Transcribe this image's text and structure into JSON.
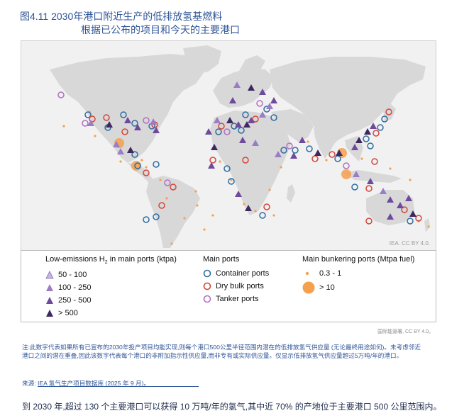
{
  "title": {
    "line1": "图4.11 2030年港口附近生产的低排放氢基燃料",
    "line2": "根据已公布的项目和今天的主要港口"
  },
  "map": {
    "credit": "IEA. CC BY 4.0.",
    "colors": {
      "land": "#d8d8d8",
      "ocean": "#f1f1f1",
      "container": "#2e6da4",
      "dry_bulk": "#d2463a",
      "tanker": "#b36fc4",
      "bunkering": "#f5a04e",
      "h2_50_100": "#c6b6e0",
      "h2_100_250": "#9a7cc7",
      "h2_250_500": "#6e4a9c",
      "h2_gt_500": "#3d2860"
    }
  },
  "legend": {
    "h2_title_pre": "Low-emissions H",
    "h2_title_sub": "2",
    "h2_title_post": " in main ports (ktpa)",
    "h2_items": [
      "50 - 100",
      "100 - 250",
      "250 - 500",
      "> 500"
    ],
    "ports_title": "Main ports",
    "ports_items": [
      "Container ports",
      "Dry bulk ports",
      "Tanker ports"
    ],
    "bunker_title": "Main bunkering ports (Mtpa fuel)",
    "bunker_items": [
      "0.3 - 1",
      "> 10"
    ]
  },
  "notes": {
    "credit": "国际能源署, CC BY 4.0。",
    "note_text": "注:此数字代表如果所有已宣布的2030年投产项目均能实现,则每个港口500公里半径范围内潜在的低排放氢气供应量 (无论最终用途如何)。未考虑邻近港口之间的潜在重叠,因此该数字代表每个港口的非附加指示性供应量,而非专有或实际供应量。仅显示低排放氢气供应量超过5万吨/年的港口。",
    "source_label": "来源:",
    "source_link": "IEA 氢气生产项目数据库 (2025 年 9 月)",
    "source_end": "。",
    "summary": "到 2030 年,超过 130 个主要港口可以获得 10 万吨/年的氢气,其中近 70% 的产地位于主要港口 500 公里范围内。"
  }
}
